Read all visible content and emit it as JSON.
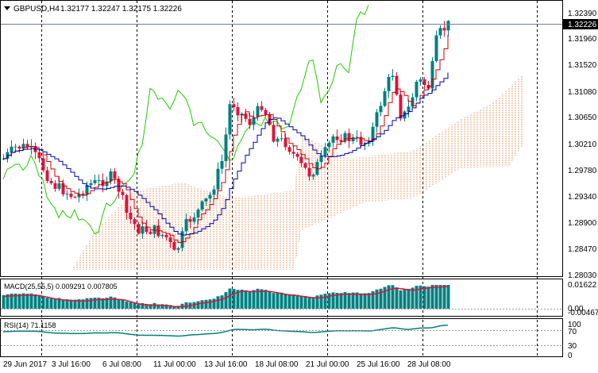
{
  "header": {
    "symbol_tf": "GBPUSD,H4",
    "ohlc": "1.32177 1.32247 1.32175 1.32226"
  },
  "price_axis": {
    "ticks": [
      "1.32390",
      "1.31960",
      "1.31520",
      "1.31080",
      "1.30650",
      "1.30210",
      "1.29780",
      "1.29340",
      "1.28900",
      "1.28470",
      "1.28030"
    ],
    "current_price": "1.32226"
  },
  "macd": {
    "label": "MACD(25,55,5) 0.009291 0.007805",
    "ticks": [
      "0.01622",
      "0.00",
      "-0.00467"
    ]
  },
  "rsi": {
    "label": "RSI(14) 71.1158",
    "ticks": [
      "100",
      "70",
      "30",
      "0"
    ]
  },
  "time_axis": {
    "labels": [
      "29 Jun 2017",
      "3 Jul 16:00",
      "6 Jul 08:00",
      "11 Jul 00:00",
      "13 Jul 16:00",
      "18 Jul 08:00",
      "21 Jul 00:00",
      "25 Jul 16:00",
      "28 Jul 08:00"
    ]
  },
  "colors": {
    "bull": "#008080",
    "bear": "#dc143c",
    "tenkan": "#cc0000",
    "kijun": "#0000aa",
    "chikou": "#22cc00",
    "cloud": "#e8a070",
    "grid": "#000000"
  }
}
